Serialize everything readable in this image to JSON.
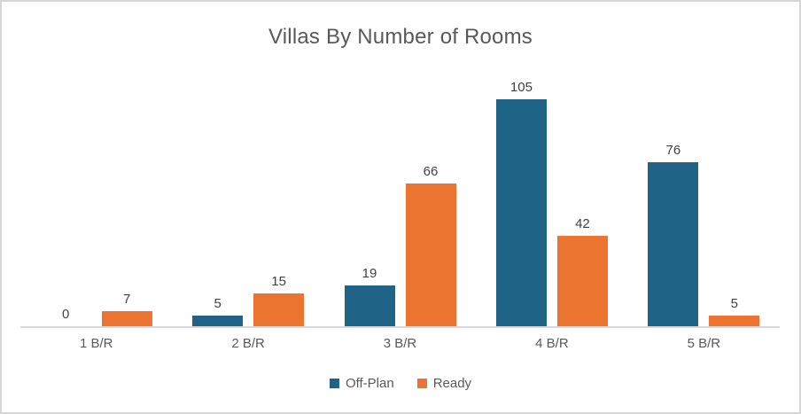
{
  "chart_data": {
    "type": "bar",
    "title": "Villas By Number of Rooms",
    "categories": [
      "1 B/R",
      "2 B/R",
      "3 B/R",
      "4 B/R",
      "5 B/R"
    ],
    "series": [
      {
        "name": "Off-Plan",
        "color": "#1F6386",
        "values": [
          0,
          5,
          19,
          105,
          76
        ]
      },
      {
        "name": "Ready",
        "color": "#EC7431",
        "values": [
          7,
          15,
          66,
          42,
          5
        ]
      }
    ],
    "xlabel": "",
    "ylabel": "",
    "ylim": [
      0,
      120
    ],
    "grid": false,
    "y_axis_visible": false,
    "data_labels": true,
    "legend_position": "bottom"
  },
  "colors": {
    "title_text": "#595959",
    "data_label_text": "#404040",
    "axis_label_text": "#595959",
    "axis_line": "#D9D9D9",
    "border": "#D6D6D6",
    "background": "#FFFFFF"
  }
}
